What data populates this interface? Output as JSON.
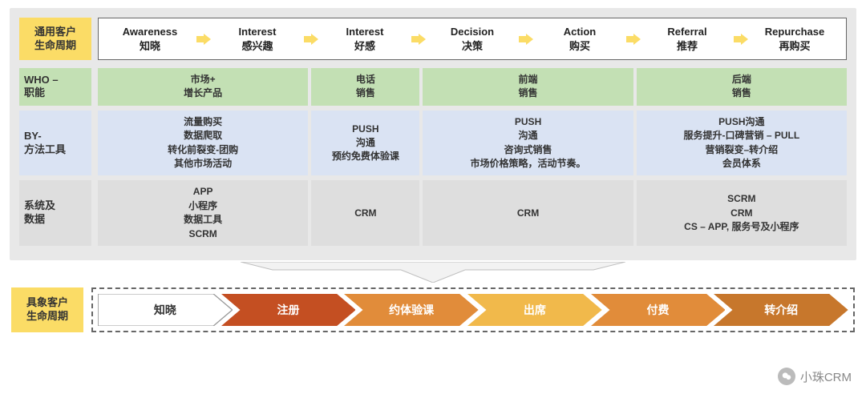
{
  "colors": {
    "panel_bg": "#e8e8e8",
    "yellow": "#fbdc66",
    "who_bg": "#c3e0b4",
    "by_bg": "#dae3f3",
    "sys_bg": "#dedede",
    "arrow_fill": "#fbdc66",
    "connector_fill": "#f2f2f2",
    "connector_stroke": "#bfbfbf",
    "dash_border": "#666666",
    "text": "#333333"
  },
  "top_label": "通用客户\n生命周期",
  "stages": [
    {
      "en": "Awareness",
      "cn": "知晓"
    },
    {
      "en": "Interest",
      "cn": "感兴趣"
    },
    {
      "en": "Interest",
      "cn": "好感"
    },
    {
      "en": "Decision",
      "cn": "决策"
    },
    {
      "en": "Action",
      "cn": "购买"
    },
    {
      "en": "Referral",
      "cn": "推荐"
    },
    {
      "en": "Repurchase",
      "cn": "再购买"
    }
  ],
  "columns_weights": [
    2,
    1,
    2,
    2
  ],
  "rows": {
    "who": {
      "label": "WHO –\n职能",
      "cells": [
        [
          "市场+",
          "增长产品"
        ],
        [
          "电话",
          "销售"
        ],
        [
          "前端",
          "销售"
        ],
        [
          "后端",
          "销售"
        ]
      ]
    },
    "by": {
      "label": "BY-\n方法工具",
      "cells": [
        [
          "流量购买",
          "数据爬取",
          "转化前裂变-团购",
          "其他市场活动"
        ],
        [
          "PUSH",
          "沟通",
          "预约免费体验课"
        ],
        [
          "PUSH",
          "沟通",
          "咨询式销售",
          "市场价格策略，活动节奏。"
        ],
        [
          "PUSH沟通",
          "服务提升-口碑营销 – PULL",
          "营销裂变–转介绍",
          "会员体系"
        ]
      ]
    },
    "sys": {
      "label": "系统及\n数据",
      "cells": [
        [
          "APP",
          "小程序",
          "数据工具",
          "SCRM"
        ],
        [
          "CRM"
        ],
        [
          "CRM"
        ],
        [
          "SCRM",
          "CRM",
          "CS – APP, 服务号及小程序"
        ]
      ]
    }
  },
  "bottom_label": "具象客户\n生命周期",
  "chevrons": [
    {
      "label": "知晓",
      "fill": "#ffffff",
      "text": "#333333"
    },
    {
      "label": "注册",
      "fill": "#c44f22",
      "text": "#ffffff"
    },
    {
      "label": "约体验课",
      "fill": "#e18c3a",
      "text": "#ffffff"
    },
    {
      "label": "出席",
      "fill": "#f1b94b",
      "text": "#ffffff"
    },
    {
      "label": "付费",
      "fill": "#e18c3a",
      "text": "#ffffff"
    },
    {
      "label": "转介绍",
      "fill": "#c7772c",
      "text": "#ffffff"
    }
  ],
  "watermark": "小珠CRM"
}
